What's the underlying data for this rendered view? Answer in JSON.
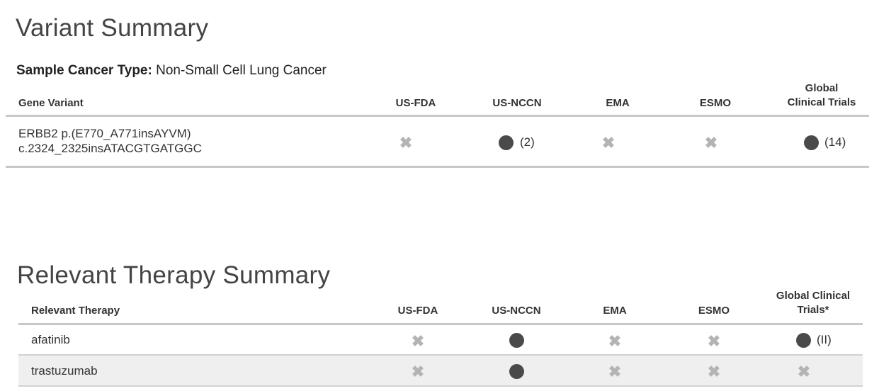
{
  "variant_summary": {
    "title": "Variant Summary",
    "cancer_type_label": "Sample Cancer Type:",
    "cancer_type_value": "Non-Small Cell Lung Cancer",
    "columns": {
      "gene_variant": "Gene Variant",
      "us_fda": "US-FDA",
      "us_nccn": "US-NCCN",
      "ema": "EMA",
      "esmo": "ESMO",
      "global_trials_line1": "Global",
      "global_trials_line2": "Clinical Trials"
    },
    "rows": [
      {
        "variant_line1": "ERBB2 p.(E770_A771insAYVM)",
        "variant_line2": "c.2324_2325insATACGTGATGGC",
        "us_fda": "not-available",
        "us_nccn": "available",
        "us_nccn_count": "(2)",
        "ema": "not-available",
        "esmo": "not-available",
        "global_trials": "available",
        "global_trials_count": "(14)"
      }
    ]
  },
  "therapy_summary": {
    "title": "Relevant Therapy Summary",
    "columns": {
      "therapy": "Relevant Therapy",
      "us_fda": "US-FDA",
      "us_nccn": "US-NCCN",
      "ema": "EMA",
      "esmo": "ESMO",
      "global_trials_line1": "Global Clinical",
      "global_trials_line2": "Trials*"
    },
    "rows": [
      {
        "therapy": "afatinib",
        "us_fda": "not-available",
        "us_nccn": "available",
        "ema": "not-available",
        "esmo": "not-available",
        "global_trials": "available",
        "global_trials_count": "(II)"
      },
      {
        "therapy": "trastuzumab",
        "us_fda": "not-available",
        "us_nccn": "available",
        "ema": "not-available",
        "esmo": "not-available",
        "global_trials": "not-available"
      }
    ]
  },
  "icons": {
    "not_available": "x-mark-icon",
    "available": "filled-circle-icon",
    "x_glyph": "✖"
  },
  "colors": {
    "x_mark": "#b4b4b4",
    "dot": "#4a4a4a",
    "row_shade": "#efefef"
  }
}
